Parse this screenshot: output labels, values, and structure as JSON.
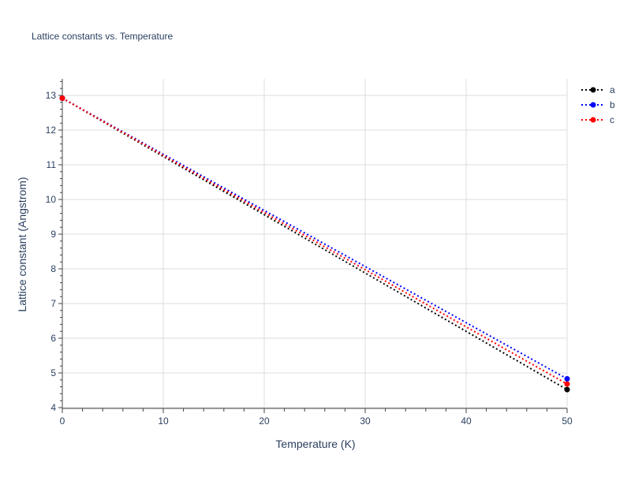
{
  "chart_data": {
    "type": "line",
    "title": "Lattice constants vs. Temperature",
    "xlabel": "Temperature (K)",
    "ylabel": "Lattice constant (Angstrom)",
    "xlim": [
      0,
      50
    ],
    "ylim": [
      3.95,
      13.5
    ],
    "xticks": [
      0,
      10,
      20,
      30,
      40,
      50
    ],
    "yticks": [
      4,
      5,
      6,
      7,
      8,
      9,
      10,
      11,
      12,
      13
    ],
    "grid": true,
    "legend_position": "top-right",
    "series": [
      {
        "name": "a",
        "color": "#000000",
        "x": [
          0,
          50
        ],
        "y": [
          12.92,
          4.52
        ]
      },
      {
        "name": "b",
        "color": "#0000ff",
        "x": [
          0,
          50
        ],
        "y": [
          12.92,
          4.83
        ]
      },
      {
        "name": "c",
        "color": "#ff0000",
        "x": [
          0,
          50
        ],
        "y": [
          12.92,
          4.68
        ]
      }
    ]
  }
}
